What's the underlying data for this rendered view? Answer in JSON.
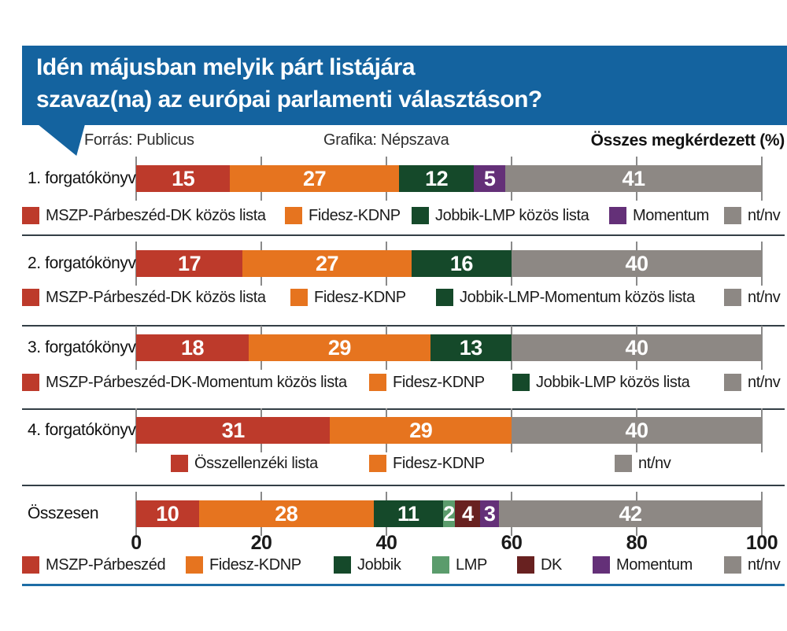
{
  "header": {
    "title_line1": "Idén májusban melyik párt listájára",
    "title_line2": "szavaz(na) az európai parlamenti választáson?",
    "source_label": "Forrás: Publicus",
    "graphics_label": "Grafika: Népszava",
    "unit_label": "Összes megkérdezett (%)"
  },
  "colors": {
    "header_bg": "#14639f",
    "mszp": "#bd3a2b",
    "fidesz": "#e6741f",
    "jobbik": "#15492a",
    "lmp": "#5b9c6c",
    "dk": "#682120",
    "momentum": "#643078",
    "ntnv": "#8d8884",
    "separator": "#333e46",
    "tick": "#8a8a8a",
    "bottom_line": "#1d6da5"
  },
  "axis": {
    "ticks": [
      0,
      20,
      40,
      60,
      80,
      100
    ]
  },
  "rows": [
    {
      "label": "1. forgatókönyv",
      "segments": [
        {
          "value": 15,
          "party": "mszp"
        },
        {
          "value": 27,
          "party": "fidesz"
        },
        {
          "value": 12,
          "party": "jobbik"
        },
        {
          "value": 5,
          "party": "momentum"
        },
        {
          "value": 41,
          "party": "ntnv"
        }
      ],
      "legend": [
        {
          "label": "MSZP-Párbeszéd-DK közös lista",
          "party": "mszp"
        },
        {
          "label": "Fidesz-KDNP",
          "party": "fidesz"
        },
        {
          "label": "Jobbik-LMP közös lista",
          "party": "jobbik"
        },
        {
          "label": "Momentum",
          "party": "momentum"
        },
        {
          "label": "nt/nv",
          "party": "ntnv"
        }
      ]
    },
    {
      "label": "2. forgatókönyv",
      "segments": [
        {
          "value": 17,
          "party": "mszp"
        },
        {
          "value": 27,
          "party": "fidesz"
        },
        {
          "value": 16,
          "party": "jobbik"
        },
        {
          "value": 40,
          "party": "ntnv"
        }
      ],
      "legend": [
        {
          "label": "MSZP-Párbeszéd-DK közös lista",
          "party": "mszp"
        },
        {
          "label": "Fidesz-KDNP",
          "party": "fidesz"
        },
        {
          "label": "Jobbik-LMP-Momentum közös lista",
          "party": "jobbik"
        },
        {
          "label": "nt/nv",
          "party": "ntnv"
        }
      ]
    },
    {
      "label": "3. forgatókönyv",
      "segments": [
        {
          "value": 18,
          "party": "mszp"
        },
        {
          "value": 29,
          "party": "fidesz"
        },
        {
          "value": 13,
          "party": "jobbik"
        },
        {
          "value": 40,
          "party": "ntnv"
        }
      ],
      "legend": [
        {
          "label": "MSZP-Párbeszéd-DK-Momentum közös lista",
          "party": "mszp"
        },
        {
          "label": "Fidesz-KDNP",
          "party": "fidesz"
        },
        {
          "label": "Jobbik-LMP közös lista",
          "party": "jobbik"
        },
        {
          "label": "nt/nv",
          "party": "ntnv"
        }
      ]
    },
    {
      "label": "4. forgatókönyv",
      "segments": [
        {
          "value": 31,
          "party": "mszp"
        },
        {
          "value": 29,
          "party": "fidesz"
        },
        {
          "value": 40,
          "party": "ntnv"
        }
      ],
      "legend": [
        {
          "label": "Összellenzéki lista",
          "party": "mszp"
        },
        {
          "label": "Fidesz-KDNP",
          "party": "fidesz"
        },
        {
          "label": "nt/nv",
          "party": "ntnv"
        }
      ]
    },
    {
      "label": "Összesen",
      "segments": [
        {
          "value": 10,
          "party": "mszp"
        },
        {
          "value": 28,
          "party": "fidesz"
        },
        {
          "value": 11,
          "party": "jobbik"
        },
        {
          "value": 2,
          "party": "lmp"
        },
        {
          "value": 4,
          "party": "dk"
        },
        {
          "value": 3,
          "party": "momentum"
        },
        {
          "value": 42,
          "party": "ntnv"
        }
      ],
      "legend": [
        {
          "label": "MSZP-Párbeszéd",
          "party": "mszp"
        },
        {
          "label": "Fidesz-KDNP",
          "party": "fidesz"
        },
        {
          "label": "Jobbik",
          "party": "jobbik"
        },
        {
          "label": "LMP",
          "party": "lmp"
        },
        {
          "label": "DK",
          "party": "dk"
        },
        {
          "label": "Momentum",
          "party": "momentum"
        },
        {
          "label": "nt/nv",
          "party": "ntnv"
        }
      ]
    }
  ],
  "chart_data": {
    "type": "bar",
    "orientation": "horizontal",
    "stacked": true,
    "title": "Idén májusban melyik párt listájára szavaz(na) az európai parlamenti választáson?",
    "xlabel": "Összes megkérdezett (%)",
    "xlim": [
      0,
      100
    ],
    "x_ticks": [
      0,
      20,
      40,
      60,
      80,
      100
    ],
    "categories": [
      "1. forgatókönyv",
      "2. forgatókönyv",
      "3. forgatókönyv",
      "4. forgatókönyv",
      "Összesen"
    ],
    "rows": [
      {
        "category": "1. forgatókönyv",
        "segments": [
          [
            "MSZP-Párbeszéd-DK közös lista",
            15
          ],
          [
            "Fidesz-KDNP",
            27
          ],
          [
            "Jobbik-LMP közös lista",
            12
          ],
          [
            "Momentum",
            5
          ],
          [
            "nt/nv",
            41
          ]
        ]
      },
      {
        "category": "2. forgatókönyv",
        "segments": [
          [
            "MSZP-Párbeszéd-DK közös lista",
            17
          ],
          [
            "Fidesz-KDNP",
            27
          ],
          [
            "Jobbik-LMP-Momentum közös lista",
            16
          ],
          [
            "nt/nv",
            40
          ]
        ]
      },
      {
        "category": "3. forgatókönyv",
        "segments": [
          [
            "MSZP-Párbeszéd-DK-Momentum közös lista",
            18
          ],
          [
            "Fidesz-KDNP",
            29
          ],
          [
            "Jobbik-LMP közös lista",
            13
          ],
          [
            "nt/nv",
            40
          ]
        ]
      },
      {
        "category": "4. forgatókönyv",
        "segments": [
          [
            "Összellenzéki lista",
            31
          ],
          [
            "Fidesz-KDNP",
            29
          ],
          [
            "nt/nv",
            40
          ]
        ]
      },
      {
        "category": "Összesen",
        "segments": [
          [
            "MSZP-Párbeszéd",
            10
          ],
          [
            "Fidesz-KDNP",
            28
          ],
          [
            "Jobbik",
            11
          ],
          [
            "LMP",
            2
          ],
          [
            "DK",
            4
          ],
          [
            "Momentum",
            3
          ],
          [
            "nt/nv",
            42
          ]
        ]
      }
    ],
    "source": "Forrás: Publicus",
    "credit": "Grafika: Népszava",
    "legend_position": "below-each-bar",
    "grid": false
  }
}
